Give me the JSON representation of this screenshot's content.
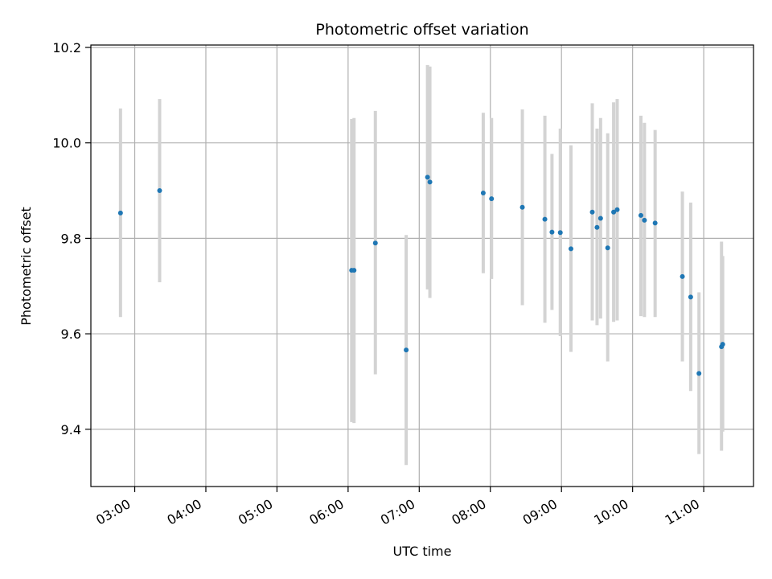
{
  "chart_data": {
    "type": "scatter",
    "title": "Photometric offset variation",
    "xlabel": "UTC time",
    "ylabel": "Photometric offset",
    "x_ticks": [
      "03:00",
      "04:00",
      "05:00",
      "06:00",
      "07:00",
      "08:00",
      "09:00",
      "10:00",
      "11:00"
    ],
    "y_ticks": [
      "9.4",
      "9.6",
      "9.8",
      "10.0",
      "10.2"
    ],
    "grid": true,
    "xlim": [
      "02:23",
      "11:42"
    ],
    "ylim": [
      9.28,
      10.205
    ],
    "colors": {
      "point": "#1f77b4",
      "errorbar": "#d3d3d3",
      "grid": "#b0b0b0"
    },
    "points": [
      {
        "x": "02:48",
        "y": 9.853,
        "ylo": 9.635,
        "yhi": 10.072
      },
      {
        "x": "03:21",
        "y": 9.9,
        "ylo": 9.708,
        "yhi": 10.092
      },
      {
        "x": "06:03",
        "y": 9.733,
        "ylo": 9.415,
        "yhi": 10.05
      },
      {
        "x": "06:05",
        "y": 9.733,
        "ylo": 9.413,
        "yhi": 10.052
      },
      {
        "x": "06:23",
        "y": 9.79,
        "ylo": 9.515,
        "yhi": 10.067
      },
      {
        "x": "06:49",
        "y": 9.566,
        "ylo": 9.325,
        "yhi": 9.807
      },
      {
        "x": "07:07",
        "y": 9.928,
        "ylo": 9.693,
        "yhi": 10.163
      },
      {
        "x": "07:09",
        "y": 9.918,
        "ylo": 9.675,
        "yhi": 10.16
      },
      {
        "x": "07:54",
        "y": 9.895,
        "ylo": 9.727,
        "yhi": 10.063
      },
      {
        "x": "08:01",
        "y": 9.883,
        "ylo": 9.715,
        "yhi": 10.052
      },
      {
        "x": "08:27",
        "y": 9.865,
        "ylo": 9.66,
        "yhi": 10.07
      },
      {
        "x": "08:46",
        "y": 9.84,
        "ylo": 9.623,
        "yhi": 10.057
      },
      {
        "x": "08:52",
        "y": 9.813,
        "ylo": 9.65,
        "yhi": 9.977
      },
      {
        "x": "08:59",
        "y": 9.812,
        "ylo": 9.595,
        "yhi": 10.03
      },
      {
        "x": "09:08",
        "y": 9.778,
        "ylo": 9.562,
        "yhi": 9.995
      },
      {
        "x": "09:26",
        "y": 9.855,
        "ylo": 9.628,
        "yhi": 10.083
      },
      {
        "x": "09:30",
        "y": 9.823,
        "ylo": 9.618,
        "yhi": 10.03
      },
      {
        "x": "09:33",
        "y": 9.842,
        "ylo": 9.632,
        "yhi": 10.052
      },
      {
        "x": "09:39",
        "y": 9.78,
        "ylo": 9.542,
        "yhi": 10.02
      },
      {
        "x": "09:44",
        "y": 9.855,
        "ylo": 9.625,
        "yhi": 10.085
      },
      {
        "x": "09:47",
        "y": 9.86,
        "ylo": 9.628,
        "yhi": 10.092
      },
      {
        "x": "10:07",
        "y": 9.848,
        "ylo": 9.637,
        "yhi": 10.057
      },
      {
        "x": "10:10",
        "y": 9.838,
        "ylo": 9.635,
        "yhi": 10.042
      },
      {
        "x": "10:19",
        "y": 9.832,
        "ylo": 9.635,
        "yhi": 10.027
      },
      {
        "x": "10:42",
        "y": 9.72,
        "ylo": 9.542,
        "yhi": 9.898
      },
      {
        "x": "10:49",
        "y": 9.677,
        "ylo": 9.48,
        "yhi": 9.875
      },
      {
        "x": "10:56",
        "y": 9.517,
        "ylo": 9.348,
        "yhi": 9.687
      },
      {
        "x": "11:15",
        "y": 9.573,
        "ylo": 9.355,
        "yhi": 9.793
      },
      {
        "x": "11:16",
        "y": 9.578,
        "ylo": 9.395,
        "yhi": 9.763
      }
    ]
  }
}
